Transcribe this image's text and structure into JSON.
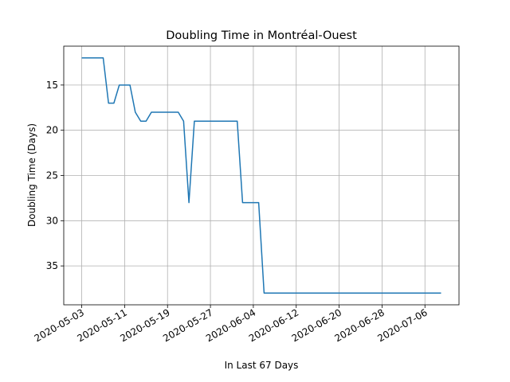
{
  "chart_data": {
    "type": "line",
    "title": "Doubling Time in  Montréal-Ouest",
    "xlabel": "In Last 67 Days",
    "ylabel": "Doubling Time (Days)",
    "y_inverted": true,
    "ylim": [
      12,
      38
    ],
    "xlim": [
      "2020-05-03",
      "2020-07-09"
    ],
    "grid": true,
    "x_ticks": [
      "2020-05-03",
      "2020-05-11",
      "2020-05-19",
      "2020-05-27",
      "2020-06-04",
      "2020-06-12",
      "2020-06-20",
      "2020-06-28",
      "2020-07-06"
    ],
    "y_ticks": [
      15,
      20,
      25,
      30,
      35
    ],
    "series": [
      {
        "color": "#1f77b4",
        "points": [
          {
            "x": "2020-05-03",
            "y": 12
          },
          {
            "x": "2020-05-07",
            "y": 12
          },
          {
            "x": "2020-05-08",
            "y": 17
          },
          {
            "x": "2020-05-09",
            "y": 17
          },
          {
            "x": "2020-05-10",
            "y": 15
          },
          {
            "x": "2020-05-12",
            "y": 15
          },
          {
            "x": "2020-05-13",
            "y": 18
          },
          {
            "x": "2020-05-14",
            "y": 19
          },
          {
            "x": "2020-05-15",
            "y": 19
          },
          {
            "x": "2020-05-16",
            "y": 18
          },
          {
            "x": "2020-05-21",
            "y": 18
          },
          {
            "x": "2020-05-22",
            "y": 19
          },
          {
            "x": "2020-05-23",
            "y": 28
          },
          {
            "x": "2020-05-24",
            "y": 19
          },
          {
            "x": "2020-06-01",
            "y": 19
          },
          {
            "x": "2020-06-02",
            "y": 28
          },
          {
            "x": "2020-06-05",
            "y": 28
          },
          {
            "x": "2020-06-06",
            "y": 38
          },
          {
            "x": "2020-07-09",
            "y": 38
          }
        ]
      }
    ]
  }
}
